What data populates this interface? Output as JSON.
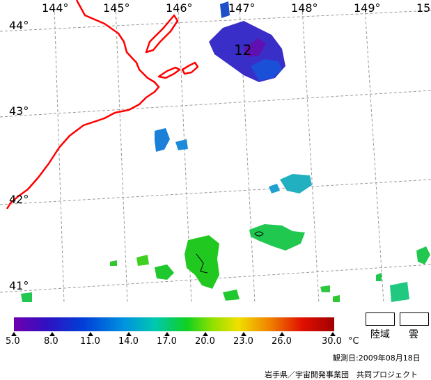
{
  "map": {
    "lon_labels": [
      "144°",
      "145°",
      "146°",
      "147°",
      "148°",
      "149°",
      "15"
    ],
    "lat_labels": [
      "44°",
      "43°",
      "42°",
      "41°"
    ],
    "contour_label": "12"
  },
  "colorbar": {
    "ticks": [
      "5.0",
      "8.0",
      "11.0",
      "14.0",
      "17.0",
      "20.0",
      "23.0",
      "26.0",
      "30.0"
    ],
    "unit": "°C"
  },
  "legend": {
    "land": "陸域",
    "cloud": "雲"
  },
  "footer": {
    "date": "観測日:2009年08月18日",
    "credit": "岩手県／宇宙開発事業団　共同プロジェクト"
  },
  "colors": {
    "coastline": "#ff0000",
    "grid": "#999999"
  }
}
